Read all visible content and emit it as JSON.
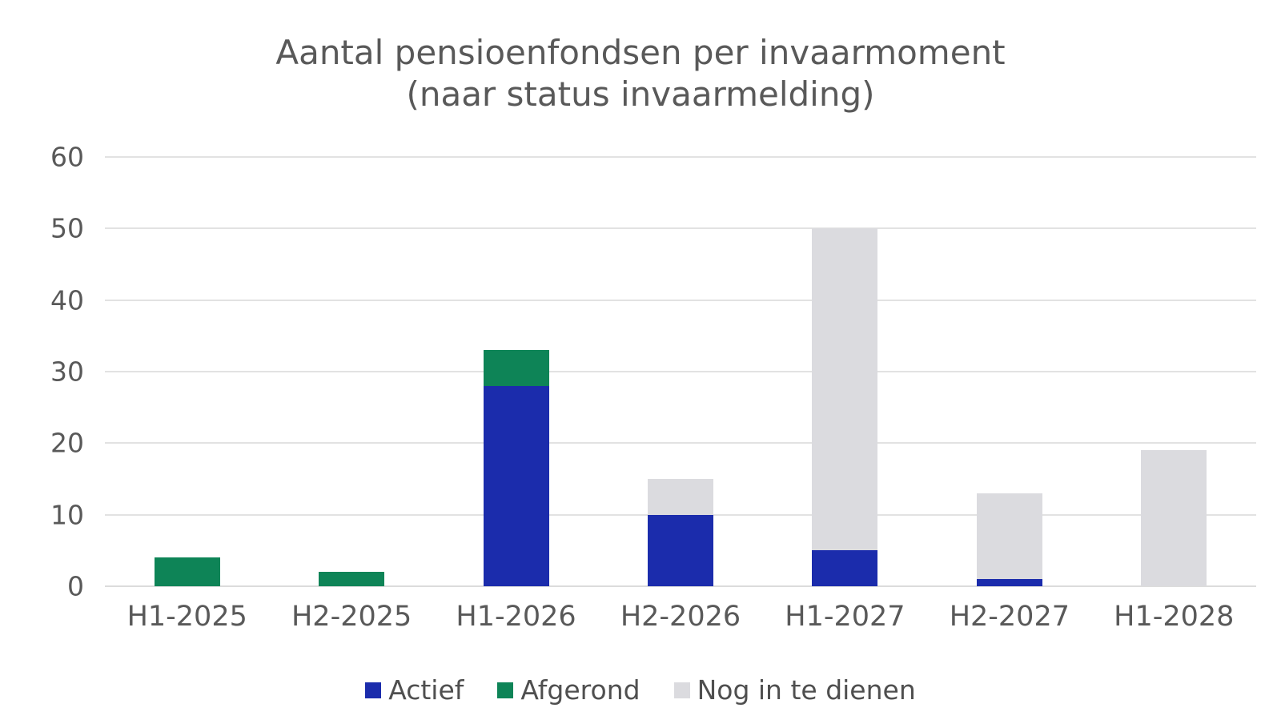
{
  "title": {
    "line1": "Aantal pensioenfondsen per invaarmoment",
    "line2": "(naar status invaarmelding)"
  },
  "chart_data": {
    "type": "bar",
    "stacked": true,
    "title": "Aantal pensioenfondsen per invaarmoment (naar status invaarmelding)",
    "xlabel": "",
    "ylabel": "",
    "categories": [
      "H1-2025",
      "H2-2025",
      "H1-2026",
      "H2-2026",
      "H1-2027",
      "H2-2027",
      "H1-2028"
    ],
    "series": [
      {
        "name": "Actief",
        "color": "#1b2cac",
        "values": [
          0,
          0,
          28,
          10,
          5,
          1,
          0
        ]
      },
      {
        "name": "Afgerond",
        "color": "#0e8457",
        "values": [
          4,
          2,
          5,
          0,
          0,
          0,
          0
        ]
      },
      {
        "name": "Nog in te dienen",
        "color": "#dbdbdf",
        "values": [
          0,
          0,
          0,
          5,
          45,
          12,
          19
        ]
      }
    ],
    "totals": [
      4,
      2,
      33,
      15,
      50,
      13,
      19
    ],
    "ylim": [
      0,
      60
    ],
    "yticks": [
      0,
      10,
      20,
      30,
      40,
      50,
      60
    ],
    "grid": true,
    "legend_position": "bottom"
  },
  "colors": {
    "background": "#ffffff",
    "gridline": "#e2e2e2",
    "title_text": "#595959",
    "axis_text": "#595959",
    "legend_text": "#4f4f4f"
  }
}
